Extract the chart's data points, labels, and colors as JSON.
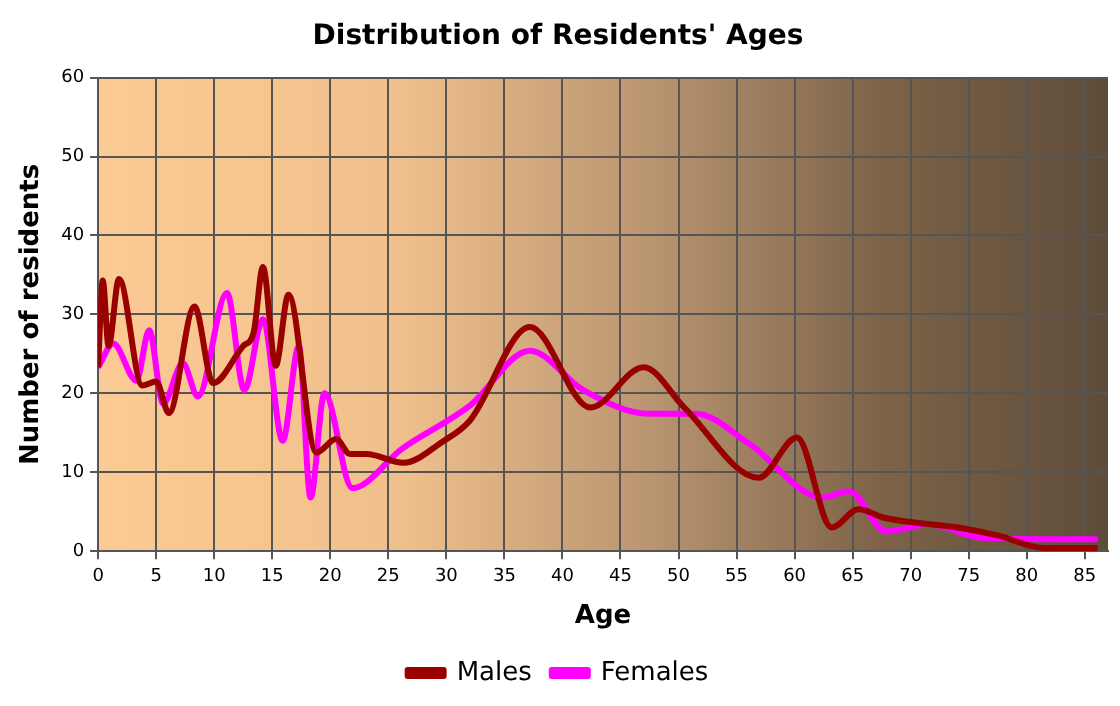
{
  "chart_data": {
    "type": "line",
    "title": "Distribution of Residents' Ages",
    "xlabel": "Age",
    "ylabel": "Number of residents",
    "xlim": [
      0,
      87
    ],
    "xticks": [
      0,
      5,
      10,
      15,
      20,
      25,
      30,
      35,
      40,
      45,
      50,
      55,
      60,
      65,
      70,
      75,
      80,
      85
    ],
    "ylim": [
      0,
      60
    ],
    "yticks": [
      0,
      10,
      20,
      30,
      40,
      50,
      60
    ],
    "grid": true,
    "legend": "bottom",
    "marker": "none",
    "line_style": "solid",
    "series": [
      {
        "name": "Males",
        "color": "#990000",
        "x": [
          0,
          0.4,
          0.9,
          1.8,
          3.8,
          5,
          6.1,
          8.3,
          9.9,
          12.5,
          13.4,
          14.2,
          15.3,
          16.4,
          18.8,
          20.5,
          21.7,
          23.1,
          26.3,
          29.7,
          32,
          37.2,
          42.4,
          47,
          50.5,
          56.9,
          60.2,
          63.2,
          65.5,
          67.8,
          74.1,
          77.5,
          81.5,
          86.1
        ],
        "values": [
          23.3,
          34.3,
          26,
          34.5,
          21,
          21.5,
          17.5,
          31,
          21.3,
          26,
          27.7,
          36,
          23.5,
          32.5,
          12.5,
          14.2,
          12.3,
          12.3,
          11.2,
          13.9,
          16.5,
          28.4,
          18.2,
          23.3,
          18.2,
          9.3,
          14.4,
          3,
          5.3,
          4.2,
          3,
          2,
          0.4,
          0.4
        ]
      },
      {
        "name": "Females",
        "color": "#ff00ff",
        "x": [
          0,
          1.3,
          3.3,
          4.4,
          5.6,
          7.3,
          8.6,
          11.1,
          12.6,
          14.2,
          15.9,
          17.3,
          18.3,
          19.5,
          21.9,
          26.2,
          32,
          37.2,
          41.8,
          47.5,
          51.5,
          56.1,
          62.4,
          64.7,
          67.9,
          71.6,
          76.2,
          86.1
        ],
        "values": [
          23.3,
          26.3,
          21.6,
          28,
          18.7,
          23.8,
          19.6,
          32.7,
          20.4,
          29.4,
          14,
          26,
          6.8,
          20,
          8,
          13,
          18.4,
          25.4,
          20.4,
          17.4,
          17.4,
          13.6,
          6.8,
          7.6,
          2.5,
          3.4,
          1.7,
          1.5
        ]
      }
    ]
  }
}
